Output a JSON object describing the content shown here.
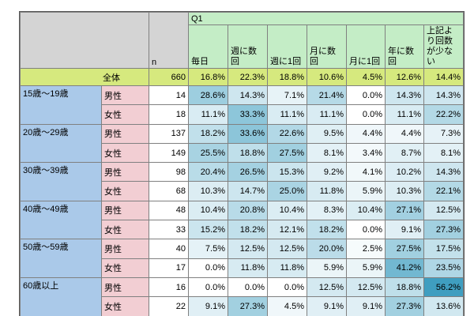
{
  "colors": {
    "header_gray": "#d4d4d4",
    "header_green": "#c4edc6",
    "total_yellow": "#d6e97e",
    "age_blue": "#aac9e9",
    "gender_pink": "#f2ced3",
    "heat_min": "#ffffff",
    "heat_max": "#3f9ec0",
    "border": "#808080"
  },
  "table": {
    "q1_label": "Q1",
    "n_header": "n"
  },
  "chart_data": {
    "type": "heatmap",
    "title": "Q1",
    "value_unit": "%",
    "freq_columns": [
      "毎日",
      "週に数回",
      "週に1回",
      "月に数回",
      "月に1回",
      "年に数回",
      "上記より回数が少ない"
    ],
    "heat": {
      "vmin": 0,
      "vmax": 56.2,
      "min_color": "#ffffff",
      "max_color": "#3f9ec0"
    },
    "total_row": {
      "label": "全体",
      "n": 660,
      "values": [
        16.8,
        22.3,
        18.8,
        10.6,
        4.5,
        12.6,
        14.4
      ]
    },
    "groups": [
      {
        "age": "15歳〜19歳",
        "rows": [
          {
            "gender": "男性",
            "n": 14,
            "values": [
              28.6,
              14.3,
              7.1,
              21.4,
              0.0,
              14.3,
              14.3
            ]
          },
          {
            "gender": "女性",
            "n": 18,
            "values": [
              11.1,
              33.3,
              11.1,
              11.1,
              0.0,
              11.1,
              22.2
            ]
          }
        ]
      },
      {
        "age": "20歳〜29歳",
        "rows": [
          {
            "gender": "男性",
            "n": 137,
            "values": [
              18.2,
              33.6,
              22.6,
              9.5,
              4.4,
              4.4,
              7.3
            ]
          },
          {
            "gender": "女性",
            "n": 149,
            "values": [
              25.5,
              18.8,
              27.5,
              8.1,
              3.4,
              8.7,
              8.1
            ]
          }
        ]
      },
      {
        "age": "30歳〜39歳",
        "rows": [
          {
            "gender": "男性",
            "n": 98,
            "values": [
              20.4,
              26.5,
              15.3,
              9.2,
              4.1,
              10.2,
              14.3
            ]
          },
          {
            "gender": "女性",
            "n": 68,
            "values": [
              10.3,
              14.7,
              25.0,
              11.8,
              5.9,
              10.3,
              22.1
            ]
          }
        ]
      },
      {
        "age": "40歳〜49歳",
        "rows": [
          {
            "gender": "男性",
            "n": 48,
            "values": [
              10.4,
              20.8,
              10.4,
              8.3,
              10.4,
              27.1,
              12.5
            ]
          },
          {
            "gender": "女性",
            "n": 33,
            "values": [
              15.2,
              18.2,
              12.1,
              18.2,
              0.0,
              9.1,
              27.3
            ]
          }
        ]
      },
      {
        "age": "50歳〜59歳",
        "rows": [
          {
            "gender": "男性",
            "n": 40,
            "values": [
              7.5,
              12.5,
              12.5,
              20.0,
              2.5,
              27.5,
              17.5
            ]
          },
          {
            "gender": "女性",
            "n": 17,
            "values": [
              0.0,
              11.8,
              11.8,
              5.9,
              5.9,
              41.2,
              23.5
            ]
          }
        ]
      },
      {
        "age": "60歳以上",
        "rows": [
          {
            "gender": "男性",
            "n": 16,
            "values": [
              0.0,
              0.0,
              0.0,
              12.5,
              12.5,
              18.8,
              56.2
            ]
          },
          {
            "gender": "女性",
            "n": 22,
            "values": [
              9.1,
              27.3,
              4.5,
              9.1,
              9.1,
              27.3,
              13.6
            ]
          }
        ]
      }
    ]
  }
}
